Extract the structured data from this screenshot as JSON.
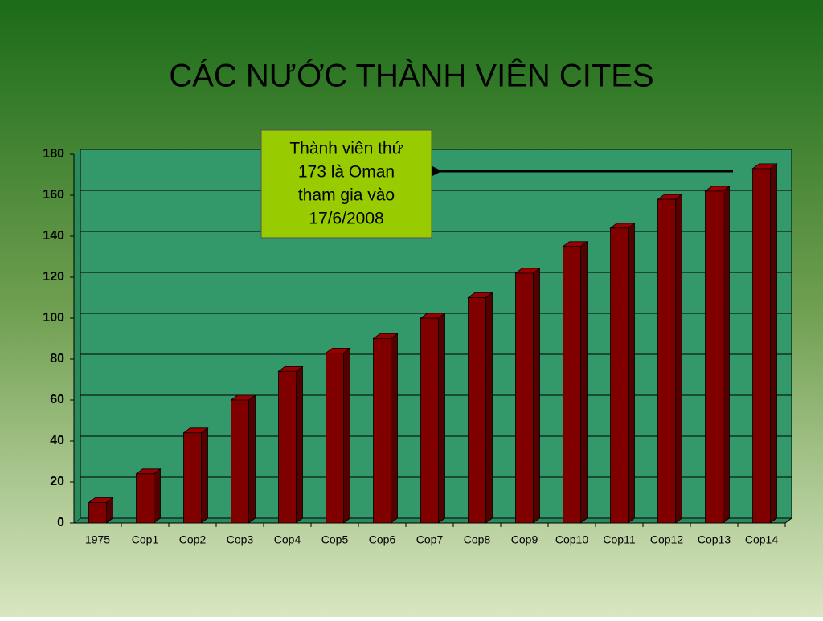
{
  "chart_data": {
    "type": "bar3d",
    "title": "CÁC NƯỚC THÀNH VIÊN CITES",
    "categories": [
      "1975",
      "Cop1",
      "Cop2",
      "Cop3",
      "Cop4",
      "Cop5",
      "Cop6",
      "Cop7",
      "Cop8",
      "Cop9",
      "Cop10",
      "Cop11",
      "Cop12",
      "Cop13",
      "Cop14"
    ],
    "values": [
      10,
      24,
      44,
      60,
      74,
      83,
      90,
      100,
      110,
      122,
      135,
      144,
      158,
      162,
      173
    ],
    "color": "#800000",
    "ylim": [
      0,
      180
    ],
    "yticks": [
      0,
      20,
      40,
      60,
      80,
      100,
      120,
      140,
      160,
      180
    ],
    "grid": true,
    "annotation": [
      "Thành viên thứ",
      "173 là Oman",
      "tham gia vào",
      "17/6/2008"
    ]
  }
}
